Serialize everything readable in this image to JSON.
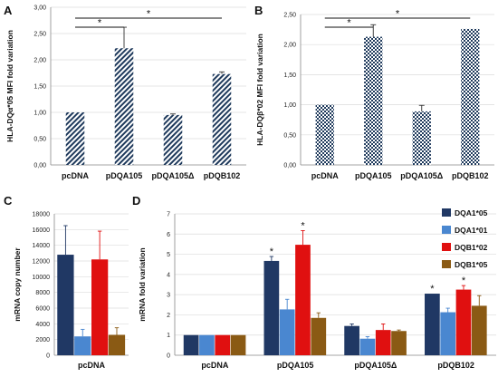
{
  "colors": {
    "dqa1_05": "#203864",
    "dqa1_01": "#4a87d0",
    "dqb1_02": "#e01010",
    "dqb1_05": "#8a5a14",
    "panel_ab_fill": "#1f3a5c"
  },
  "chart_data": [
    {
      "panel": "A",
      "type": "bar",
      "ylabel": "HLA-DQα*05 MFI fold variation",
      "categories": [
        "pcDNA",
        "pDQA105",
        "pDQA105Δ",
        "pDQB102"
      ],
      "values": [
        1.0,
        2.22,
        0.95,
        1.73
      ],
      "errors": [
        0.0,
        0.4,
        0.02,
        0.04
      ],
      "ylim": [
        0,
        3.0
      ],
      "yticks": [
        "0,00",
        "0,50",
        "1,00",
        "1,50",
        "2,00",
        "2,50",
        "3,00"
      ],
      "pattern": "diagonal-stripes",
      "significance": [
        {
          "from": 0,
          "to": 1,
          "label": "*"
        },
        {
          "from": 0,
          "to": 3,
          "label": "*"
        }
      ]
    },
    {
      "panel": "B",
      "type": "bar",
      "ylabel": "HLA-DQβ*02 MFI fold variation",
      "categories": [
        "pcDNA",
        "pDQA105",
        "pDQA105Δ",
        "pDQB102"
      ],
      "values": [
        1.0,
        2.13,
        0.89,
        2.26
      ],
      "errors": [
        0.0,
        0.2,
        0.1,
        0.0
      ],
      "ylim": [
        0,
        2.5
      ],
      "yticks": [
        "0,00",
        "0,50",
        "1,00",
        "1,50",
        "2,00",
        "2,50"
      ],
      "pattern": "checkered",
      "significance": [
        {
          "from": 0,
          "to": 1,
          "label": "*"
        },
        {
          "from": 0,
          "to": 3,
          "label": "*"
        }
      ]
    },
    {
      "panel": "C",
      "type": "bar",
      "ylabel": "mRNA copy number",
      "categories": [
        "pcDNA"
      ],
      "series": [
        {
          "name": "DQA1*05",
          "values": [
            12800
          ],
          "errors": [
            3700
          ]
        },
        {
          "name": "DQA1*01",
          "values": [
            2400
          ],
          "errors": [
            900
          ]
        },
        {
          "name": "DQB1*02",
          "values": [
            12200
          ],
          "errors": [
            3600
          ]
        },
        {
          "name": "DQB1*05",
          "values": [
            2600
          ],
          "errors": [
            900
          ]
        }
      ],
      "ylim": [
        0,
        18000
      ],
      "yticks": [
        "0",
        "2000",
        "4000",
        "6000",
        "8000",
        "10000",
        "12000",
        "14000",
        "16000",
        "18000"
      ]
    },
    {
      "panel": "D",
      "type": "bar",
      "ylabel": "mRNA fold variation",
      "categories": [
        "pcDNA",
        "pDQA105",
        "pDQA105Δ",
        "pDQB102"
      ],
      "series": [
        {
          "name": "DQA1*05",
          "values": [
            1.0,
            4.67,
            1.45,
            3.05
          ],
          "errors": [
            0.0,
            0.22,
            0.1,
            0.0
          ]
        },
        {
          "name": "DQA1*01",
          "values": [
            1.0,
            2.27,
            0.82,
            2.13
          ],
          "errors": [
            0.0,
            0.5,
            0.1,
            0.2
          ]
        },
        {
          "name": "DQB1*02",
          "values": [
            1.0,
            5.47,
            1.25,
            3.25
          ],
          "errors": [
            0.0,
            0.7,
            0.3,
            0.2
          ]
        },
        {
          "name": "DQB1*05",
          "values": [
            1.0,
            1.85,
            1.2,
            2.45
          ],
          "errors": [
            0.0,
            0.25,
            0.05,
            0.5
          ]
        }
      ],
      "ylim": [
        0,
        7
      ],
      "yticks": [
        "0",
        "1",
        "2",
        "3",
        "4",
        "5",
        "6",
        "7"
      ],
      "significance_marks": [
        {
          "category": 1,
          "series": 0,
          "label": "*"
        },
        {
          "category": 1,
          "series": 2,
          "label": "*"
        },
        {
          "category": 3,
          "series": 0,
          "label": "*"
        },
        {
          "category": 3,
          "series": 2,
          "label": "*"
        }
      ],
      "legend": {
        "placement": "top-right"
      }
    }
  ]
}
